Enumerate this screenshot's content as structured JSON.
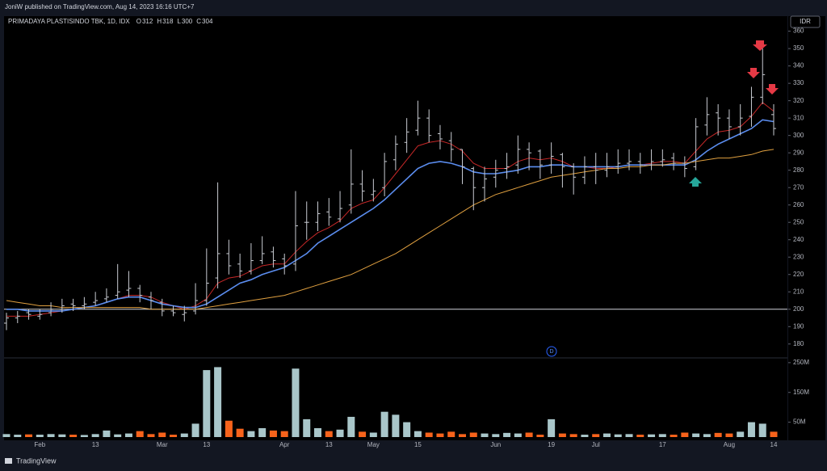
{
  "header": {
    "publisher": "JoniW published on TradingView.com, Aug 14, 2023 16:16 UTC+7"
  },
  "footer": {
    "brand": "TradingView"
  },
  "chart_data": {
    "type": "ohlc",
    "title": "PRIMADAYA PLASTISINDO TBK, 1D, IDX",
    "currency": "IDR",
    "marker_label": "D",
    "ohlc_labels": [
      "O",
      "H",
      "L",
      "C"
    ],
    "categories": [
      null,
      null,
      null,
      "Feb",
      null,
      null,
      null,
      null,
      "13",
      null,
      null,
      null,
      null,
      null,
      "Mar",
      null,
      null,
      null,
      "13",
      null,
      null,
      null,
      null,
      null,
      null,
      "Apr",
      null,
      null,
      null,
      "13",
      null,
      null,
      null,
      "May",
      null,
      null,
      null,
      "15",
      null,
      null,
      null,
      null,
      null,
      null,
      "Jun",
      null,
      null,
      null,
      null,
      "19",
      null,
      null,
      null,
      "Jul",
      null,
      null,
      null,
      null,
      null,
      "17",
      null,
      null,
      null,
      null,
      null,
      "Aug",
      null,
      null,
      null,
      "14"
    ],
    "open": [
      192,
      195,
      198,
      196,
      198,
      200,
      203,
      202,
      204,
      206,
      208,
      211,
      212,
      207,
      204,
      199,
      197,
      199,
      205,
      218,
      232,
      226,
      222,
      228,
      233,
      229,
      226,
      250,
      250,
      256,
      252,
      260,
      272,
      266,
      270,
      286,
      296,
      303,
      310,
      301,
      297,
      292,
      281,
      270,
      276,
      281,
      283,
      292,
      291,
      283,
      289,
      282,
      276,
      282,
      280,
      282,
      284,
      285,
      283,
      285,
      287,
      284,
      282,
      306,
      313,
      310,
      305,
      311,
      322,
      312
    ],
    "high": [
      198,
      199,
      200,
      200,
      204,
      206,
      206,
      207,
      210,
      212,
      226,
      222,
      214,
      210,
      206,
      202,
      202,
      215,
      235,
      273,
      240,
      232,
      238,
      242,
      236,
      232,
      268,
      262,
      262,
      264,
      268,
      292,
      280,
      275,
      290,
      300,
      310,
      320,
      315,
      306,
      302,
      292,
      282,
      282,
      286,
      290,
      300,
      296,
      292,
      296,
      290,
      284,
      288,
      290,
      290,
      292,
      292,
      290,
      292,
      292,
      290,
      288,
      310,
      322,
      318,
      315,
      318,
      328,
      350,
      318
    ],
    "low": [
      188,
      192,
      194,
      194,
      196,
      198,
      199,
      200,
      202,
      204,
      206,
      207,
      204,
      200,
      196,
      196,
      193,
      197,
      202,
      212,
      220,
      218,
      220,
      226,
      224,
      220,
      222,
      240,
      245,
      248,
      250,
      255,
      262,
      262,
      265,
      280,
      290,
      300,
      296,
      292,
      285,
      272,
      257,
      262,
      270,
      275,
      278,
      280,
      275,
      278,
      270,
      266,
      272,
      272,
      276,
      278,
      280,
      278,
      280,
      282,
      280,
      276,
      280,
      300,
      300,
      298,
      300,
      305,
      318,
      300
    ],
    "close": [
      195,
      196,
      197,
      197,
      200,
      202,
      202,
      203,
      205,
      207,
      210,
      212,
      208,
      205,
      199,
      198,
      198,
      205,
      215,
      232,
      225,
      222,
      228,
      232,
      228,
      225,
      248,
      250,
      255,
      253,
      258,
      272,
      268,
      268,
      285,
      295,
      302,
      310,
      300,
      298,
      292,
      282,
      270,
      275,
      280,
      282,
      292,
      290,
      283,
      288,
      282,
      276,
      282,
      280,
      282,
      284,
      285,
      283,
      285,
      286,
      284,
      281,
      305,
      312,
      310,
      305,
      310,
      322,
      335,
      304
    ],
    "bar_color": "#c8cbd2",
    "lines": [
      {
        "color": "#c62828",
        "values": [
          196,
          196,
          196,
          197,
          198,
          199,
          200,
          201,
          202,
          204,
          206,
          208,
          208,
          207,
          204,
          202,
          200,
          202,
          206,
          215,
          218,
          219,
          222,
          225,
          226,
          226,
          233,
          239,
          244,
          247,
          251,
          258,
          261,
          263,
          270,
          278,
          286,
          294,
          296,
          297,
          295,
          291,
          284,
          281,
          281,
          281,
          285,
          287,
          286,
          287,
          285,
          282,
          282,
          281,
          281,
          282,
          283,
          283,
          284,
          285,
          285,
          284,
          291,
          298,
          302,
          303,
          305,
          311,
          319,
          314
        ]
      },
      {
        "color": "#5b8def",
        "values": [
          200,
          200,
          199,
          199,
          199,
          199,
          200,
          201,
          202,
          204,
          206,
          207,
          207,
          205,
          203,
          202,
          201,
          201,
          203,
          207,
          211,
          215,
          217,
          220,
          222,
          224,
          228,
          232,
          238,
          242,
          246,
          250,
          254,
          258,
          263,
          269,
          275,
          281,
          284,
          285,
          284,
          282,
          279,
          278,
          278,
          279,
          280,
          282,
          282,
          283,
          283,
          282,
          282,
          282,
          282,
          282,
          283,
          283,
          283,
          283,
          283,
          283,
          286,
          291,
          295,
          298,
          301,
          304,
          309,
          308
        ]
      },
      {
        "color": "#e0a040",
        "values": [
          205,
          204,
          203,
          202,
          202,
          201,
          201,
          201,
          201,
          201,
          201,
          201,
          201,
          200,
          200,
          200,
          200,
          200,
          201,
          202,
          203,
          204,
          205,
          206,
          207,
          208,
          210,
          212,
          214,
          216,
          218,
          220,
          223,
          226,
          229,
          232,
          236,
          240,
          244,
          248,
          252,
          256,
          260,
          263,
          266,
          268,
          270,
          272,
          274,
          276,
          277,
          278,
          279,
          280,
          281,
          281,
          282,
          282,
          283,
          283,
          284,
          284,
          285,
          286,
          287,
          287,
          288,
          289,
          291,
          292
        ]
      }
    ],
    "hline": 200,
    "ylim": [
      172,
      364
    ],
    "yticks": [
      180,
      190,
      200,
      210,
      220,
      230,
      240,
      250,
      260,
      270,
      280,
      290,
      300,
      310,
      320,
      330,
      340,
      350,
      360
    ],
    "volume": {
      "values": [
        10,
        8,
        9,
        8,
        10,
        9,
        8,
        7,
        10,
        22,
        9,
        12,
        20,
        10,
        15,
        8,
        12,
        45,
        225,
        235,
        55,
        28,
        20,
        30,
        22,
        20,
        230,
        60,
        30,
        20,
        25,
        68,
        18,
        15,
        85,
        75,
        50,
        20,
        15,
        12,
        18,
        10,
        15,
        12,
        10,
        14,
        12,
        15,
        8,
        60,
        12,
        10,
        8,
        10,
        12,
        9,
        10,
        8,
        9,
        10,
        8,
        15,
        12,
        10,
        14,
        12,
        18,
        50,
        45,
        18
      ],
      "up_color": "#a9c6c9",
      "down_color": "#f7631b",
      "ylim": [
        0,
        266
      ],
      "yticks": [
        {
          "value": 50,
          "label": "50M"
        },
        {
          "value": 150,
          "label": "150M"
        },
        {
          "value": 250,
          "label": "250M"
        }
      ]
    }
  }
}
